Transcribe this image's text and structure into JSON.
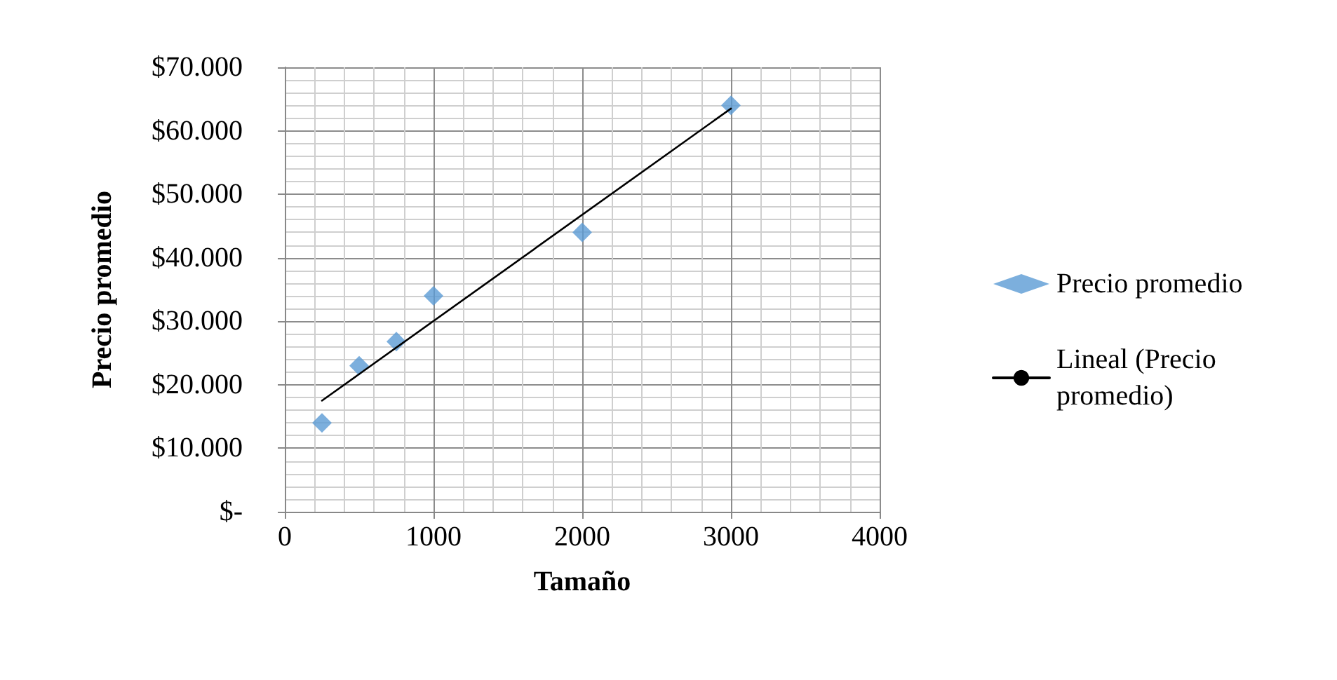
{
  "chart_data": {
    "type": "scatter",
    "xlabel": "Tamaño",
    "ylabel": "Precio promedio",
    "xlim": [
      0,
      4000
    ],
    "xticks": [
      0,
      1000,
      2000,
      3000,
      4000
    ],
    "ylim": [
      0,
      70000
    ],
    "yticks": [
      {
        "value": 0,
        "label": "$-"
      },
      {
        "value": 10000,
        "label": "$10.000"
      },
      {
        "value": 20000,
        "label": "$20.000"
      },
      {
        "value": 30000,
        "label": "$30.000"
      },
      {
        "value": 40000,
        "label": "$40.000"
      },
      {
        "value": 50000,
        "label": "$50.000"
      },
      {
        "value": 60000,
        "label": "$60.000"
      },
      {
        "value": 70000,
        "label": "$70.000"
      }
    ],
    "grid": true,
    "legend": "right",
    "series": [
      {
        "name": "Precio promedio",
        "marker": "diamond",
        "color": "#5b9bd5",
        "x": [
          250,
          500,
          750,
          1000,
          2000,
          3000
        ],
        "values": [
          14000,
          23000,
          26800,
          34000,
          44000,
          64000
        ]
      },
      {
        "name": "Lineal (Precio promedio)",
        "type": "line",
        "marker": "none",
        "line_style": "solid",
        "color": "#000000",
        "x": [
          250,
          3000
        ],
        "values": [
          17500,
          63500
        ]
      }
    ]
  }
}
